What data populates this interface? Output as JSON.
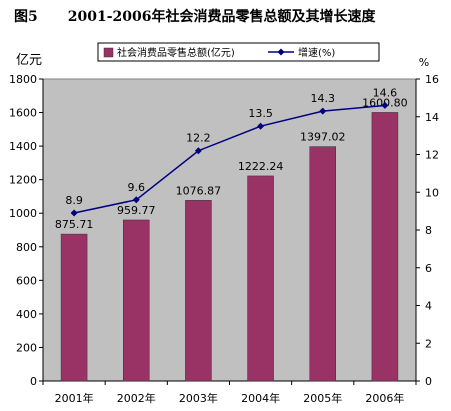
{
  "figure": {
    "number": "图5",
    "title": "2001-2006年社会消费品零售总额及其增长速度"
  },
  "chart_data": {
    "type": "bar",
    "categories": [
      "2001年",
      "2002年",
      "2003年",
      "2004年",
      "2005年",
      "2006年"
    ],
    "series": [
      {
        "name": "社会消费品零售总额(亿元)",
        "type": "bar",
        "axis": "left",
        "values": [
          875.71,
          959.77,
          1076.87,
          1222.24,
          1397.02,
          1600.8
        ],
        "labels": [
          "875.71",
          "959.77",
          "1076.87",
          "1222.24",
          "1397.02",
          "1600.80"
        ],
        "color": "#993366"
      },
      {
        "name": "增速(%)",
        "type": "line",
        "axis": "right",
        "values": [
          8.9,
          9.6,
          12.2,
          13.5,
          14.3,
          14.6
        ],
        "labels": [
          "8.9",
          "9.6",
          "12.2",
          "13.5",
          "14.3",
          "14.6"
        ],
        "color": "#000080"
      }
    ],
    "y_left": {
      "unit": "亿元",
      "ylim": [
        0,
        1800
      ],
      "ticks": [
        0,
        200,
        400,
        600,
        800,
        1000,
        1200,
        1400,
        1600,
        1800
      ]
    },
    "y_right": {
      "unit": "%",
      "ylim": [
        0,
        16
      ],
      "ticks": [
        0,
        2,
        4,
        6,
        8,
        10,
        12,
        14,
        16
      ]
    },
    "plot_background": "#c0c0c0",
    "grid": false,
    "legend": "top"
  }
}
